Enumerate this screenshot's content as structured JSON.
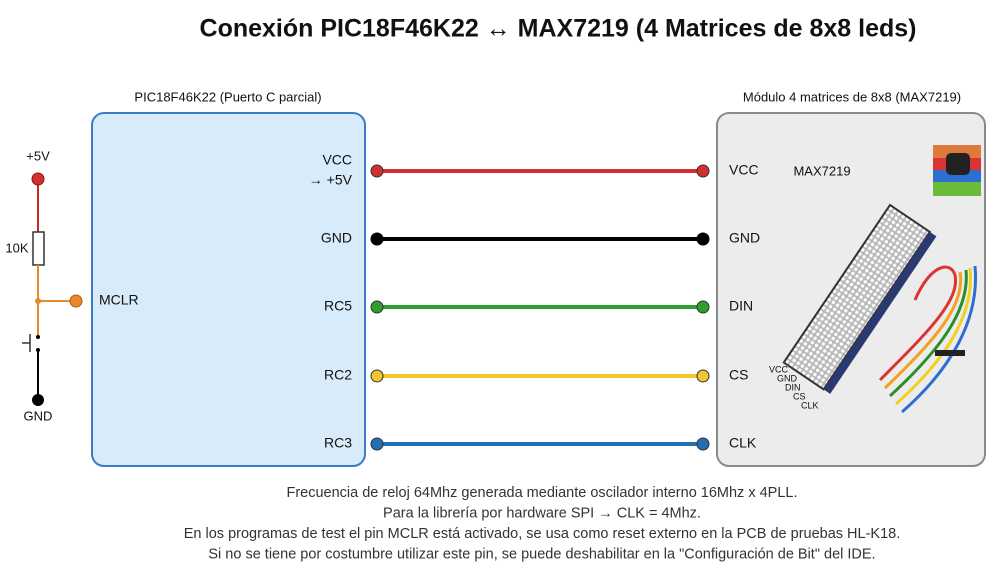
{
  "title": "Conexión PIC18F46K22 ↔ MAX7219 (4 Matrices de 8x8 leds)",
  "pic": {
    "label": "PIC18F46K22 (Puerto C parcial)",
    "pins": [
      "VCC",
      "GND",
      "RC5",
      "RC2",
      "RC3"
    ],
    "vcc_note": "→ +5V",
    "mclr": "MCLR"
  },
  "module": {
    "label": "Módulo 4 matrices de 8x8 (MAX7219)",
    "pins": [
      "VCC",
      "GND",
      "DIN",
      "CS",
      "CLK"
    ],
    "chip": "MAX7219",
    "header_pins": [
      "VCC",
      "GND",
      "DIN",
      "CS",
      "CLK"
    ]
  },
  "wires": {
    "colors": [
      "#d32f2f",
      "#000000",
      "#2e9e2e",
      "#f2c531",
      "#1f6fb2"
    ]
  },
  "reset": {
    "supply": "+5V",
    "resistor": "10K",
    "ground": "GND"
  },
  "notes": [
    "Frecuencia de reloj 64Mhz generada mediante oscilador interno 16Mhz x 4PLL.",
    "Para la librería por hardware SPI → CLK = 4Mhz.",
    "En los programas de test el pin MCLR está activado, se usa como reset externo en la PCB de pruebas HL-K18.",
    "Si no se tiene por costumbre utilizar este pin, se puede deshabilitar en la \"Configuración de Bit\" del IDE."
  ]
}
